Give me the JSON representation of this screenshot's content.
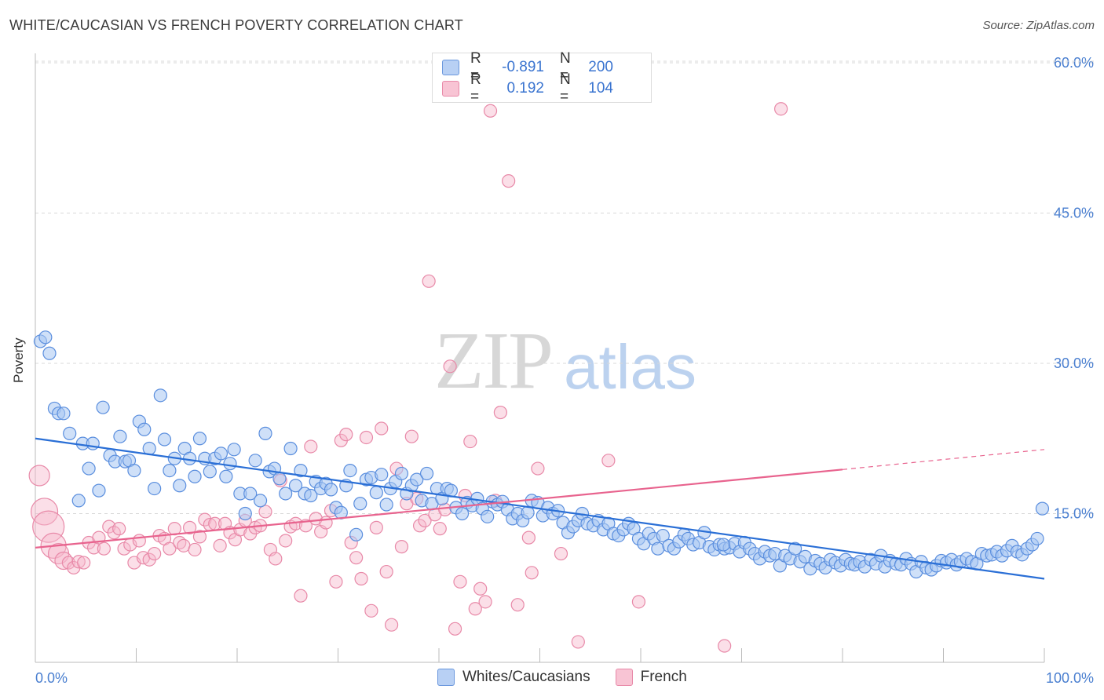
{
  "title": "WHITE/CAUCASIAN VS FRENCH POVERTY CORRELATION CHART",
  "source": "Source: ZipAtlas.com",
  "watermark": {
    "zip": "ZIP",
    "atlas": "atlas"
  },
  "colors": {
    "blue_fill": "#a8c6f2",
    "blue_stroke": "#5a8ede",
    "blue_line": "#2a6fd6",
    "pink_fill": "#f6b8cb",
    "pink_stroke": "#e889a8",
    "pink_line": "#e8638e",
    "grid": "#d8d8d8",
    "axis_label": "#4a7fd0"
  },
  "legend": {
    "rows": [
      {
        "r_label": "R =",
        "r_value": "-0.891",
        "n_label": "N =",
        "n_value": "200"
      },
      {
        "r_label": "R =",
        "r_value": "0.192",
        "n_label": "N =",
        "n_value": "104"
      }
    ]
  },
  "bottom_legend": {
    "series1": "Whites/Caucasians",
    "series2": "French"
  },
  "chart_data": {
    "type": "scatter",
    "title": "WHITE/CAUCASIAN VS FRENCH POVERTY CORRELATION CHART",
    "xlabel": "",
    "ylabel": "Poverty",
    "xlim": [
      0,
      100
    ],
    "ylim": [
      0,
      65
    ],
    "x_tick_labels": [
      "0.0%",
      "100.0%"
    ],
    "y_ticks": [
      15,
      30,
      45,
      60
    ],
    "y_tick_labels": [
      "15.0%",
      "30.0%",
      "45.0%",
      "60.0%"
    ],
    "grid": true,
    "legend_position": "top-center",
    "series": [
      {
        "name": "Whites/Caucasians",
        "trend": {
          "x0": 0,
          "y0": 22.5,
          "x1": 100,
          "y1": 8.5
        },
        "points": [
          [
            0.5,
            32.2
          ],
          [
            1.0,
            32.6
          ],
          [
            1.4,
            31.0
          ],
          [
            1.9,
            25.5
          ],
          [
            2.3,
            25.0
          ],
          [
            2.8,
            25.0
          ],
          [
            3.4,
            23.0
          ],
          [
            4.3,
            16.3
          ],
          [
            4.7,
            22.0
          ],
          [
            5.3,
            19.5
          ],
          [
            5.7,
            22.0
          ],
          [
            6.3,
            17.3
          ],
          [
            6.7,
            25.6
          ],
          [
            7.4,
            20.8
          ],
          [
            7.9,
            20.2
          ],
          [
            8.4,
            22.7
          ],
          [
            8.9,
            20.2
          ],
          [
            9.3,
            20.3
          ],
          [
            9.8,
            19.3
          ],
          [
            10.3,
            24.2
          ],
          [
            10.8,
            23.4
          ],
          [
            11.3,
            21.5
          ],
          [
            11.8,
            17.5
          ],
          [
            12.4,
            26.8
          ],
          [
            12.8,
            22.4
          ],
          [
            13.3,
            19.3
          ],
          [
            13.8,
            20.5
          ],
          [
            14.3,
            17.8
          ],
          [
            14.8,
            21.5
          ],
          [
            15.3,
            20.5
          ],
          [
            15.8,
            18.7
          ],
          [
            16.3,
            22.5
          ],
          [
            16.8,
            20.5
          ],
          [
            17.3,
            19.2
          ],
          [
            17.8,
            20.5
          ],
          [
            18.4,
            21.0
          ],
          [
            18.9,
            18.7
          ],
          [
            19.3,
            20.0
          ],
          [
            19.7,
            21.4
          ],
          [
            20.3,
            17.0
          ],
          [
            20.8,
            15.0
          ],
          [
            21.3,
            17.0
          ],
          [
            21.8,
            20.3
          ],
          [
            22.3,
            16.3
          ],
          [
            22.8,
            23.0
          ],
          [
            23.2,
            19.2
          ],
          [
            23.7,
            19.5
          ],
          [
            24.2,
            18.5
          ],
          [
            24.8,
            17.0
          ],
          [
            25.3,
            21.5
          ],
          [
            25.8,
            17.8
          ],
          [
            26.3,
            19.3
          ],
          [
            26.7,
            17.0
          ],
          [
            27.3,
            16.8
          ],
          [
            27.8,
            18.2
          ],
          [
            28.3,
            17.5
          ],
          [
            28.8,
            18.0
          ],
          [
            29.3,
            17.4
          ],
          [
            29.8,
            15.6
          ],
          [
            30.3,
            15.1
          ],
          [
            30.8,
            17.8
          ],
          [
            31.2,
            19.3
          ],
          [
            31.8,
            12.9
          ],
          [
            32.2,
            16.0
          ],
          [
            32.8,
            18.4
          ],
          [
            33.3,
            18.6
          ],
          [
            33.8,
            17.1
          ],
          [
            34.3,
            18.9
          ],
          [
            34.8,
            15.9
          ],
          [
            35.2,
            17.5
          ],
          [
            35.7,
            18.2
          ],
          [
            36.3,
            19.0
          ],
          [
            36.8,
            17.0
          ],
          [
            37.3,
            17.8
          ],
          [
            37.8,
            18.4
          ],
          [
            38.3,
            16.3
          ],
          [
            38.8,
            19.0
          ],
          [
            39.3,
            16.0
          ],
          [
            39.8,
            17.5
          ],
          [
            40.3,
            16.5
          ],
          [
            40.8,
            17.5
          ],
          [
            41.2,
            17.3
          ],
          [
            41.7,
            15.6
          ],
          [
            42.3,
            15.0
          ],
          [
            42.8,
            16.1
          ],
          [
            43.3,
            15.8
          ],
          [
            43.8,
            16.5
          ],
          [
            44.3,
            15.5
          ],
          [
            44.8,
            14.7
          ],
          [
            45.3,
            16.2
          ],
          [
            45.8,
            15.9
          ],
          [
            46.3,
            16.2
          ],
          [
            46.8,
            15.4
          ],
          [
            47.3,
            14.5
          ],
          [
            47.8,
            15.0
          ],
          [
            48.3,
            14.3
          ],
          [
            48.8,
            15.1
          ],
          [
            49.2,
            16.3
          ],
          [
            49.8,
            16.1
          ],
          [
            50.3,
            14.8
          ],
          [
            50.8,
            15.6
          ],
          [
            51.3,
            15.0
          ],
          [
            51.8,
            15.3
          ],
          [
            52.3,
            14.1
          ],
          [
            52.8,
            13.1
          ],
          [
            53.3,
            13.7
          ],
          [
            53.8,
            14.3
          ],
          [
            54.2,
            15.0
          ],
          [
            54.7,
            14.0
          ],
          [
            55.3,
            13.8
          ],
          [
            55.8,
            14.3
          ],
          [
            56.3,
            13.4
          ],
          [
            56.8,
            14.0
          ],
          [
            57.3,
            13.0
          ],
          [
            57.8,
            12.8
          ],
          [
            58.3,
            13.4
          ],
          [
            58.8,
            14.0
          ],
          [
            59.3,
            13.5
          ],
          [
            59.8,
            12.5
          ],
          [
            60.3,
            12.0
          ],
          [
            60.8,
            13.0
          ],
          [
            61.3,
            12.5
          ],
          [
            61.7,
            11.5
          ],
          [
            62.2,
            12.8
          ],
          [
            62.8,
            11.8
          ],
          [
            63.3,
            11.5
          ],
          [
            63.8,
            12.2
          ],
          [
            64.3,
            12.9
          ],
          [
            64.7,
            12.5
          ],
          [
            65.2,
            11.9
          ],
          [
            65.8,
            12.1
          ],
          [
            66.3,
            13.1
          ],
          [
            66.8,
            11.7
          ],
          [
            67.3,
            11.4
          ],
          [
            67.8,
            11.9
          ],
          [
            68.3,
            11.5
          ],
          [
            68.8,
            11.6
          ],
          [
            69.3,
            12.0
          ],
          [
            69.8,
            11.2
          ],
          [
            70.3,
            12.1
          ],
          [
            70.8,
            11.5
          ],
          [
            71.3,
            11.0
          ],
          [
            71.8,
            10.5
          ],
          [
            72.3,
            11.2
          ],
          [
            72.8,
            10.8
          ],
          [
            73.3,
            11.0
          ],
          [
            73.8,
            9.8
          ],
          [
            74.3,
            10.8
          ],
          [
            74.8,
            10.5
          ],
          [
            75.3,
            11.5
          ],
          [
            75.8,
            10.2
          ],
          [
            76.3,
            10.7
          ],
          [
            76.8,
            9.5
          ],
          [
            77.3,
            10.3
          ],
          [
            77.8,
            10.0
          ],
          [
            78.3,
            9.6
          ],
          [
            78.8,
            10.4
          ],
          [
            79.3,
            10.1
          ],
          [
            79.8,
            9.8
          ],
          [
            80.3,
            10.4
          ],
          [
            80.8,
            10.0
          ],
          [
            81.2,
            9.9
          ],
          [
            81.7,
            10.2
          ],
          [
            82.2,
            9.7
          ],
          [
            82.8,
            10.4
          ],
          [
            83.3,
            10.0
          ],
          [
            83.8,
            10.8
          ],
          [
            84.2,
            9.7
          ],
          [
            84.7,
            10.3
          ],
          [
            85.3,
            10.0
          ],
          [
            85.8,
            9.9
          ],
          [
            86.3,
            10.5
          ],
          [
            86.8,
            10.0
          ],
          [
            87.3,
            9.2
          ],
          [
            87.8,
            10.2
          ],
          [
            88.3,
            9.6
          ],
          [
            88.8,
            9.4
          ],
          [
            89.3,
            9.8
          ],
          [
            89.8,
            10.3
          ],
          [
            90.3,
            10.1
          ],
          [
            90.8,
            10.4
          ],
          [
            91.3,
            9.9
          ],
          [
            91.7,
            10.2
          ],
          [
            92.3,
            10.5
          ],
          [
            92.8,
            10.2
          ],
          [
            93.3,
            10.0
          ],
          [
            93.8,
            11.0
          ],
          [
            94.3,
            10.8
          ],
          [
            94.8,
            10.9
          ],
          [
            95.3,
            11.2
          ],
          [
            95.8,
            10.8
          ],
          [
            96.3,
            11.3
          ],
          [
            96.8,
            11.8
          ],
          [
            97.3,
            11.2
          ],
          [
            97.8,
            10.9
          ],
          [
            98.3,
            11.5
          ],
          [
            98.8,
            11.9
          ],
          [
            99.3,
            12.5
          ],
          [
            99.8,
            15.5
          ],
          [
            68.2,
            11.9
          ]
        ]
      },
      {
        "name": "French",
        "trend": {
          "x0": 0,
          "y0": 11.6,
          "x1": 80,
          "y1": 19.4
        },
        "trend_dashed": {
          "x0": 80,
          "y0": 19.4,
          "x1": 100,
          "y1": 21.4
        },
        "points": [
          [
            0.4,
            18.8
          ],
          [
            0.9,
            15.2
          ],
          [
            1.3,
            13.7
          ],
          [
            1.8,
            11.8
          ],
          [
            2.3,
            11.0
          ],
          [
            2.8,
            10.3
          ],
          [
            3.3,
            10.1
          ],
          [
            3.8,
            9.6
          ],
          [
            4.3,
            10.2
          ],
          [
            4.8,
            10.1
          ],
          [
            5.3,
            12.1
          ],
          [
            5.8,
            11.6
          ],
          [
            6.3,
            12.6
          ],
          [
            6.8,
            11.5
          ],
          [
            7.3,
            13.7
          ],
          [
            7.8,
            13.1
          ],
          [
            8.3,
            13.5
          ],
          [
            8.8,
            11.5
          ],
          [
            9.4,
            11.9
          ],
          [
            9.8,
            10.1
          ],
          [
            10.3,
            12.3
          ],
          [
            10.7,
            10.6
          ],
          [
            11.3,
            10.4
          ],
          [
            11.8,
            11.0
          ],
          [
            12.3,
            12.8
          ],
          [
            12.8,
            12.5
          ],
          [
            13.3,
            11.5
          ],
          [
            13.8,
            13.5
          ],
          [
            14.3,
            12.1
          ],
          [
            14.7,
            11.8
          ],
          [
            15.3,
            13.6
          ],
          [
            15.8,
            11.4
          ],
          [
            16.3,
            12.7
          ],
          [
            16.8,
            14.4
          ],
          [
            17.3,
            13.9
          ],
          [
            17.8,
            14.0
          ],
          [
            18.3,
            11.8
          ],
          [
            18.8,
            14.0
          ],
          [
            19.3,
            13.1
          ],
          [
            19.8,
            12.4
          ],
          [
            20.3,
            13.4
          ],
          [
            20.8,
            14.3
          ],
          [
            21.3,
            13.0
          ],
          [
            21.8,
            13.6
          ],
          [
            22.3,
            13.8
          ],
          [
            22.8,
            15.2
          ],
          [
            23.3,
            11.4
          ],
          [
            23.8,
            10.5
          ],
          [
            24.3,
            18.3
          ],
          [
            24.8,
            12.3
          ],
          [
            25.3,
            13.7
          ],
          [
            25.8,
            14.0
          ],
          [
            26.3,
            6.8
          ],
          [
            26.8,
            13.8
          ],
          [
            27.3,
            21.7
          ],
          [
            27.8,
            14.5
          ],
          [
            28.3,
            13.2
          ],
          [
            28.8,
            14.1
          ],
          [
            29.3,
            15.3
          ],
          [
            29.8,
            8.2
          ],
          [
            30.3,
            22.3
          ],
          [
            30.8,
            22.9
          ],
          [
            31.3,
            12.1
          ],
          [
            31.8,
            10.6
          ],
          [
            32.3,
            8.5
          ],
          [
            32.8,
            22.6
          ],
          [
            33.3,
            5.3
          ],
          [
            33.8,
            13.6
          ],
          [
            34.3,
            23.5
          ],
          [
            34.8,
            9.2
          ],
          [
            35.3,
            3.9
          ],
          [
            35.8,
            19.5
          ],
          [
            36.3,
            11.7
          ],
          [
            36.8,
            16.0
          ],
          [
            37.3,
            22.7
          ],
          [
            37.8,
            16.5
          ],
          [
            38.1,
            13.8
          ],
          [
            38.6,
            14.3
          ],
          [
            39.0,
            38.2
          ],
          [
            39.6,
            14.9
          ],
          [
            40.1,
            13.5
          ],
          [
            40.6,
            15.4
          ],
          [
            41.1,
            29.7
          ],
          [
            41.6,
            3.5
          ],
          [
            42.1,
            8.2
          ],
          [
            42.6,
            16.8
          ],
          [
            43.1,
            22.2
          ],
          [
            43.6,
            5.5
          ],
          [
            44.1,
            7.5
          ],
          [
            44.6,
            6.2
          ],
          [
            45.1,
            55.2
          ],
          [
            45.6,
            16.3
          ],
          [
            46.1,
            25.1
          ],
          [
            46.9,
            48.2
          ],
          [
            47.8,
            5.9
          ],
          [
            48.9,
            12.6
          ],
          [
            49.2,
            9.1
          ],
          [
            49.8,
            19.5
          ],
          [
            52.1,
            11.0
          ],
          [
            53.8,
            2.2
          ],
          [
            56.8,
            20.3
          ],
          [
            59.8,
            6.2
          ],
          [
            68.3,
            1.8
          ],
          [
            73.9,
            55.4
          ]
        ]
      }
    ]
  }
}
